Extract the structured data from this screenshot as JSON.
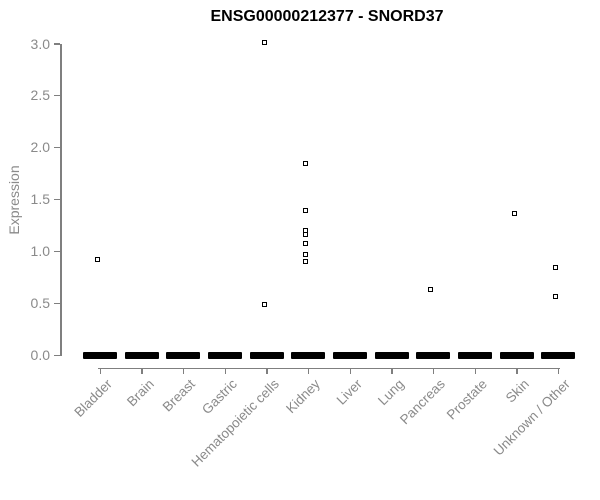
{
  "page": {
    "background": "#ffffff"
  },
  "chart_data": {
    "type": "scatter",
    "subtype": "strip-plot-by-category",
    "title": "ENSG00000212377 - SNORD37",
    "xlabel": "",
    "ylabel": "Expression",
    "ylim": [
      0.0,
      3.0
    ],
    "ytick_labels": [
      "0.0",
      "0.5",
      "1.0",
      "1.5",
      "2.0",
      "2.5",
      "3.0"
    ],
    "categories": [
      "Bladder",
      "Brain",
      "Breast",
      "Gastric",
      "Hematopoietic cells",
      "Kidney",
      "Liver",
      "Lung",
      "Pancreas",
      "Prostate",
      "Skin",
      "Unknown / Other"
    ],
    "zero_dash_note": "Every category shows a thick black dash of many overlapping sample points at expression = 0.0",
    "nonzero_points": [
      {
        "category": "Bladder",
        "value": 0.92
      },
      {
        "category": "Hematopoietic cells",
        "value": 3.01
      },
      {
        "category": "Hematopoietic cells",
        "value": 0.49
      },
      {
        "category": "Kidney",
        "value": 1.84
      },
      {
        "category": "Kidney",
        "value": 1.39
      },
      {
        "category": "Kidney",
        "value": 1.2
      },
      {
        "category": "Kidney",
        "value": 1.16
      },
      {
        "category": "Kidney",
        "value": 1.07
      },
      {
        "category": "Kidney",
        "value": 0.97
      },
      {
        "category": "Kidney",
        "value": 0.9
      },
      {
        "category": "Pancreas",
        "value": 0.63
      },
      {
        "category": "Skin",
        "value": 1.36
      },
      {
        "category": "Unknown / Other",
        "value": 0.84
      },
      {
        "category": "Unknown / Other",
        "value": 0.56
      }
    ],
    "marker": "open-square",
    "grid": false,
    "legend": "none",
    "colors": {
      "points": "#000000",
      "zero_dash": "#000000",
      "axis": "#7f7f7f",
      "tick_label": "#8a8a8a",
      "title": "#000000",
      "background": "#ffffff"
    }
  }
}
